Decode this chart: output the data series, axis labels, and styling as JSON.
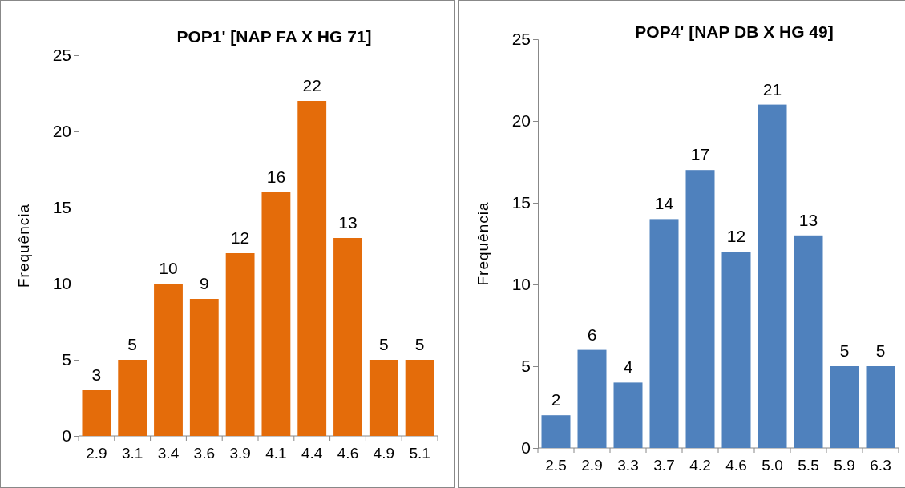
{
  "chart_data": [
    {
      "type": "bar",
      "title": "POP1' [NAP FA X HG 71]",
      "ylabel": "Frequência",
      "categories": [
        "2.9",
        "3.1",
        "3.4",
        "3.6",
        "3.9",
        "4.1",
        "4.4",
        "4.6",
        "4.9",
        "5.1"
      ],
      "values": [
        3,
        5,
        10,
        9,
        12,
        16,
        22,
        13,
        5,
        5
      ],
      "color": "#e46c0a",
      "ylim": [
        0,
        25
      ],
      "yticks": [
        0,
        5,
        10,
        15,
        20,
        25
      ],
      "data_labels": true
    },
    {
      "type": "bar",
      "title": "POP4' [NAP DB X HG 49]",
      "ylabel": "Frequência",
      "categories": [
        "2.5",
        "2.9",
        "3.3",
        "3.7",
        "4.2",
        "4.6",
        "5.0",
        "5.5",
        "5.9",
        "6.3"
      ],
      "values": [
        2,
        6,
        4,
        14,
        17,
        12,
        21,
        13,
        5,
        5
      ],
      "color": "#4f81bd",
      "ylim": [
        0,
        25
      ],
      "yticks": [
        0,
        5,
        10,
        15,
        20,
        25
      ],
      "data_labels": true
    }
  ]
}
